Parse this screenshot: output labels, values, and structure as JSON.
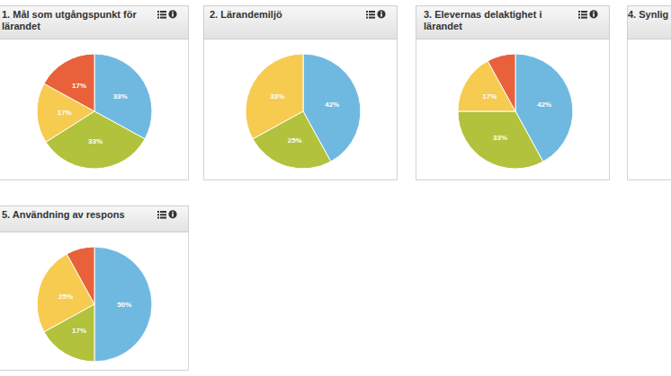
{
  "chart_data": [
    {
      "type": "pie",
      "title": "1. Mål som utgångspunkt för lärandet",
      "values": [
        33,
        33,
        17,
        17
      ],
      "value_labels": [
        "33%",
        "33%",
        "17%",
        "17%"
      ],
      "colors": [
        "#6fb9e1",
        "#b2c23c",
        "#f7cb4f",
        "#e8613a"
      ],
      "data_labels": true
    },
    {
      "type": "pie",
      "title": "2. Lärandemiljö",
      "values": [
        42,
        25,
        33
      ],
      "value_labels": [
        "42%",
        "25%",
        "33%"
      ],
      "colors": [
        "#6fb9e1",
        "#b2c23c",
        "#f7cb4f"
      ],
      "data_labels": true
    },
    {
      "type": "pie",
      "title": "3. Elevernas delaktighet i lärandet",
      "values": [
        42,
        33,
        17,
        8
      ],
      "value_labels": [
        "42%",
        "33%",
        "17%",
        null
      ],
      "colors": [
        "#6fb9e1",
        "#b2c23c",
        "#f7cb4f",
        "#e8613a"
      ],
      "data_labels": true
    },
    {
      "type": "pie",
      "title": "4. Synlig",
      "values": [],
      "value_labels": [],
      "colors": [],
      "data_labels": true
    },
    {
      "type": "pie",
      "title": "5. Användning av respons",
      "values": [
        50,
        17,
        25,
        8
      ],
      "value_labels": [
        "50%",
        "17%",
        "25%",
        null
      ],
      "colors": [
        "#6fb9e1",
        "#b2c23c",
        "#f7cb4f",
        "#e8613a"
      ],
      "data_labels": true
    }
  ]
}
